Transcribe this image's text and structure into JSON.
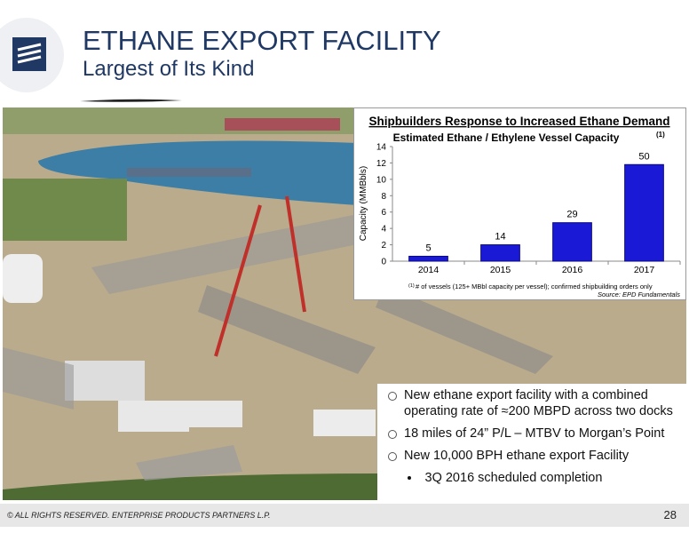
{
  "header": {
    "title": "ETHANE EXPORT FACILITY",
    "subtitle": "Largest of Its Kind"
  },
  "chart_data": {
    "type": "bar",
    "title": "Shipbuilders Response to Increased Ethane Demand",
    "subtitle": "Estimated Ethane / Ethylene Vessel Capacity",
    "subtitle_note": "(1)",
    "y_label": "Capacity (MMBbls)",
    "categories": [
      "2014",
      "2015",
      "2016",
      "2017"
    ],
    "values": [
      0.6,
      2.0,
      4.7,
      11.8
    ],
    "color": "#1a1ad6",
    "vessels": [
      5,
      14,
      29,
      50
    ],
    "ylim": [
      0,
      14
    ],
    "yticks": [
      0,
      2,
      4,
      6,
      8,
      10,
      12,
      14
    ],
    "grid": false,
    "footnote_mark": "(1)",
    "footnote": "# of vessels (125+ MBbl capacity per vessel); confirmed shipbuilding orders only",
    "source": "Source: EPD Fundamentals"
  },
  "bullets": [
    "New ethane export facility with a combined operating rate of ≈200 MBPD across two docks",
    "18 miles of 24” P/L – MTBV to Morgan’s Point",
    "New 10,000 BPH ethane export Facility"
  ],
  "sub_bullets": [
    "3Q 2016 scheduled completion"
  ],
  "footer": {
    "copyright": "© ALL RIGHTS RESERVED. ENTERPRISE PRODUCTS PARTNERS L.P.",
    "page": "28"
  }
}
